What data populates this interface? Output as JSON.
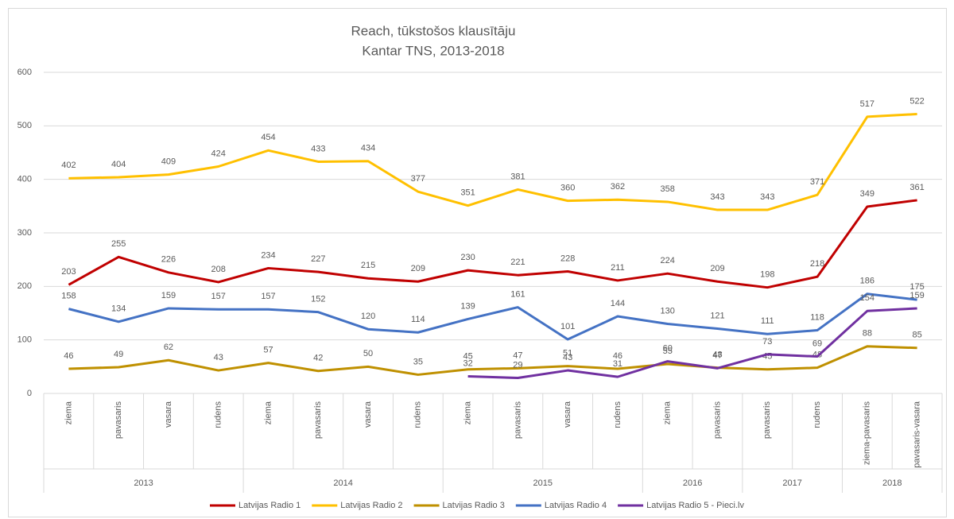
{
  "chart_data": {
    "type": "line",
    "title": "Reach, tūkstošos klausītāju",
    "subtitle": "Kantar TNS, 2013-2018",
    "category_groups": [
      {
        "label": "2013",
        "categories": [
          "ziema",
          "pavasaris",
          "vasara",
          "rudens"
        ]
      },
      {
        "label": "2014",
        "categories": [
          "ziema",
          "pavasaris",
          "vasara",
          "rudens"
        ]
      },
      {
        "label": "2015",
        "categories": [
          "ziema",
          "pavasaris",
          "vasara",
          "rudens"
        ]
      },
      {
        "label": "2016",
        "categories": [
          "ziema",
          "pavasaris"
        ]
      },
      {
        "label": "2017",
        "categories": [
          "pavasaris",
          "rudens"
        ]
      },
      {
        "label": "2018",
        "categories": [
          "ziema-pavasaris",
          "pavasaris-vasara"
        ]
      }
    ],
    "series": [
      {
        "name": "Latvijas Radio 1",
        "color": "#c00000",
        "values": [
          203,
          255,
          226,
          208,
          234,
          227,
          215,
          209,
          230,
          221,
          228,
          211,
          224,
          209,
          198,
          218,
          349,
          361
        ]
      },
      {
        "name": "Latvijas Radio 2",
        "color": "#ffc000",
        "values": [
          402,
          404,
          409,
          424,
          454,
          433,
          434,
          377,
          351,
          381,
          360,
          362,
          358,
          343,
          343,
          371,
          517,
          522
        ]
      },
      {
        "name": "Latvijas Radio 3",
        "color": "#bf9000",
        "values": [
          46,
          49,
          62,
          43,
          57,
          42,
          50,
          35,
          45,
          47,
          51,
          46,
          55,
          48,
          45,
          48,
          88,
          85
        ]
      },
      {
        "name": "Latvijas Radio 4",
        "color": "#4472c4",
        "values": [
          158,
          134,
          159,
          157,
          157,
          152,
          120,
          114,
          139,
          161,
          101,
          144,
          130,
          121,
          111,
          118,
          186,
          175
        ]
      },
      {
        "name": "Latvijas Radio 5 - Pieci.lv",
        "color": "#7030a0",
        "values": [
          null,
          null,
          null,
          null,
          null,
          null,
          null,
          null,
          32,
          29,
          43,
          31,
          60,
          47,
          73,
          69,
          154,
          159
        ]
      }
    ],
    "ylim": [
      0,
      600
    ],
    "yticks": [
      0,
      100,
      200,
      300,
      400,
      500,
      600
    ],
    "grid": true,
    "legend": "bottom"
  }
}
